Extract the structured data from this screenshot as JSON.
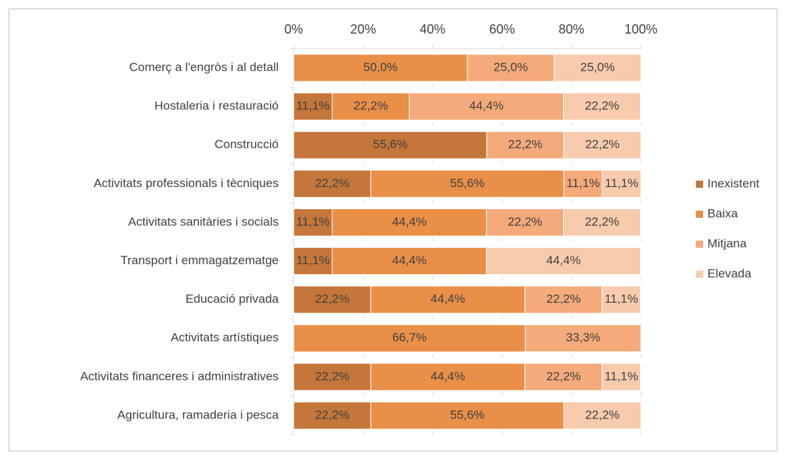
{
  "chart_data": {
    "type": "bar",
    "orientation": "horizontal",
    "stacked": true,
    "categories": [
      "Comerç a l'engròs i al detall",
      "Hostaleria i restauració",
      "Construcció",
      "Activitats professionals i tècniques",
      "Activitats sanitàries i socials",
      "Transport i emmagatzematge",
      "Educació privada",
      "Activitats artístiques",
      "Activitats financeres i administratives",
      "Agricultura, ramaderia i pesca"
    ],
    "series": [
      {
        "name": "Inexistent",
        "color": "#c5763a",
        "values": [
          0,
          11.1,
          55.6,
          22.2,
          11.1,
          11.1,
          22.2,
          0,
          22.2,
          22.2
        ],
        "value_labels": [
          null,
          "11,1%",
          "55,6%",
          "22,2%",
          "11,1%",
          "11,1%",
          "22,2%",
          null,
          "22,2%",
          "22,2%"
        ]
      },
      {
        "name": "Baixa",
        "color": "#e98f47",
        "values": [
          50.0,
          22.2,
          0,
          55.6,
          44.4,
          44.4,
          44.4,
          66.7,
          44.4,
          55.6
        ],
        "value_labels": [
          "50,0%",
          "22,2%",
          null,
          "55,6%",
          "44,4%",
          "44,4%",
          "44,4%",
          "66,7%",
          "44,4%",
          "55,6%"
        ]
      },
      {
        "name": "Mitjana",
        "color": "#f4aa7a",
        "values": [
          25.0,
          44.4,
          22.2,
          11.1,
          22.2,
          0,
          22.2,
          33.3,
          22.2,
          0
        ],
        "value_labels": [
          "25,0%",
          "44,4%",
          "22,2%",
          "11,1%",
          "22,2%",
          null,
          "22,2%",
          "33,3%",
          "22,2%",
          null
        ]
      },
      {
        "name": "Elevada",
        "color": "#f8cbad",
        "values": [
          25.0,
          22.2,
          22.2,
          11.1,
          22.2,
          44.4,
          11.1,
          0,
          11.1,
          22.2
        ],
        "value_labels": [
          "25,0%",
          "22,2%",
          "22,2%",
          "11,1%",
          "22,2%",
          "44,4%",
          "11,1%",
          null,
          "11,1%",
          "22,2%"
        ]
      }
    ],
    "xlim": [
      0,
      100
    ],
    "xticks": [
      {
        "value": 0,
        "label": "0%"
      },
      {
        "value": 20,
        "label": "20%"
      },
      {
        "value": 40,
        "label": "40%"
      },
      {
        "value": 60,
        "label": "60%"
      },
      {
        "value": 80,
        "label": "80%"
      },
      {
        "value": 100,
        "label": "100%"
      }
    ],
    "legend": "right"
  }
}
